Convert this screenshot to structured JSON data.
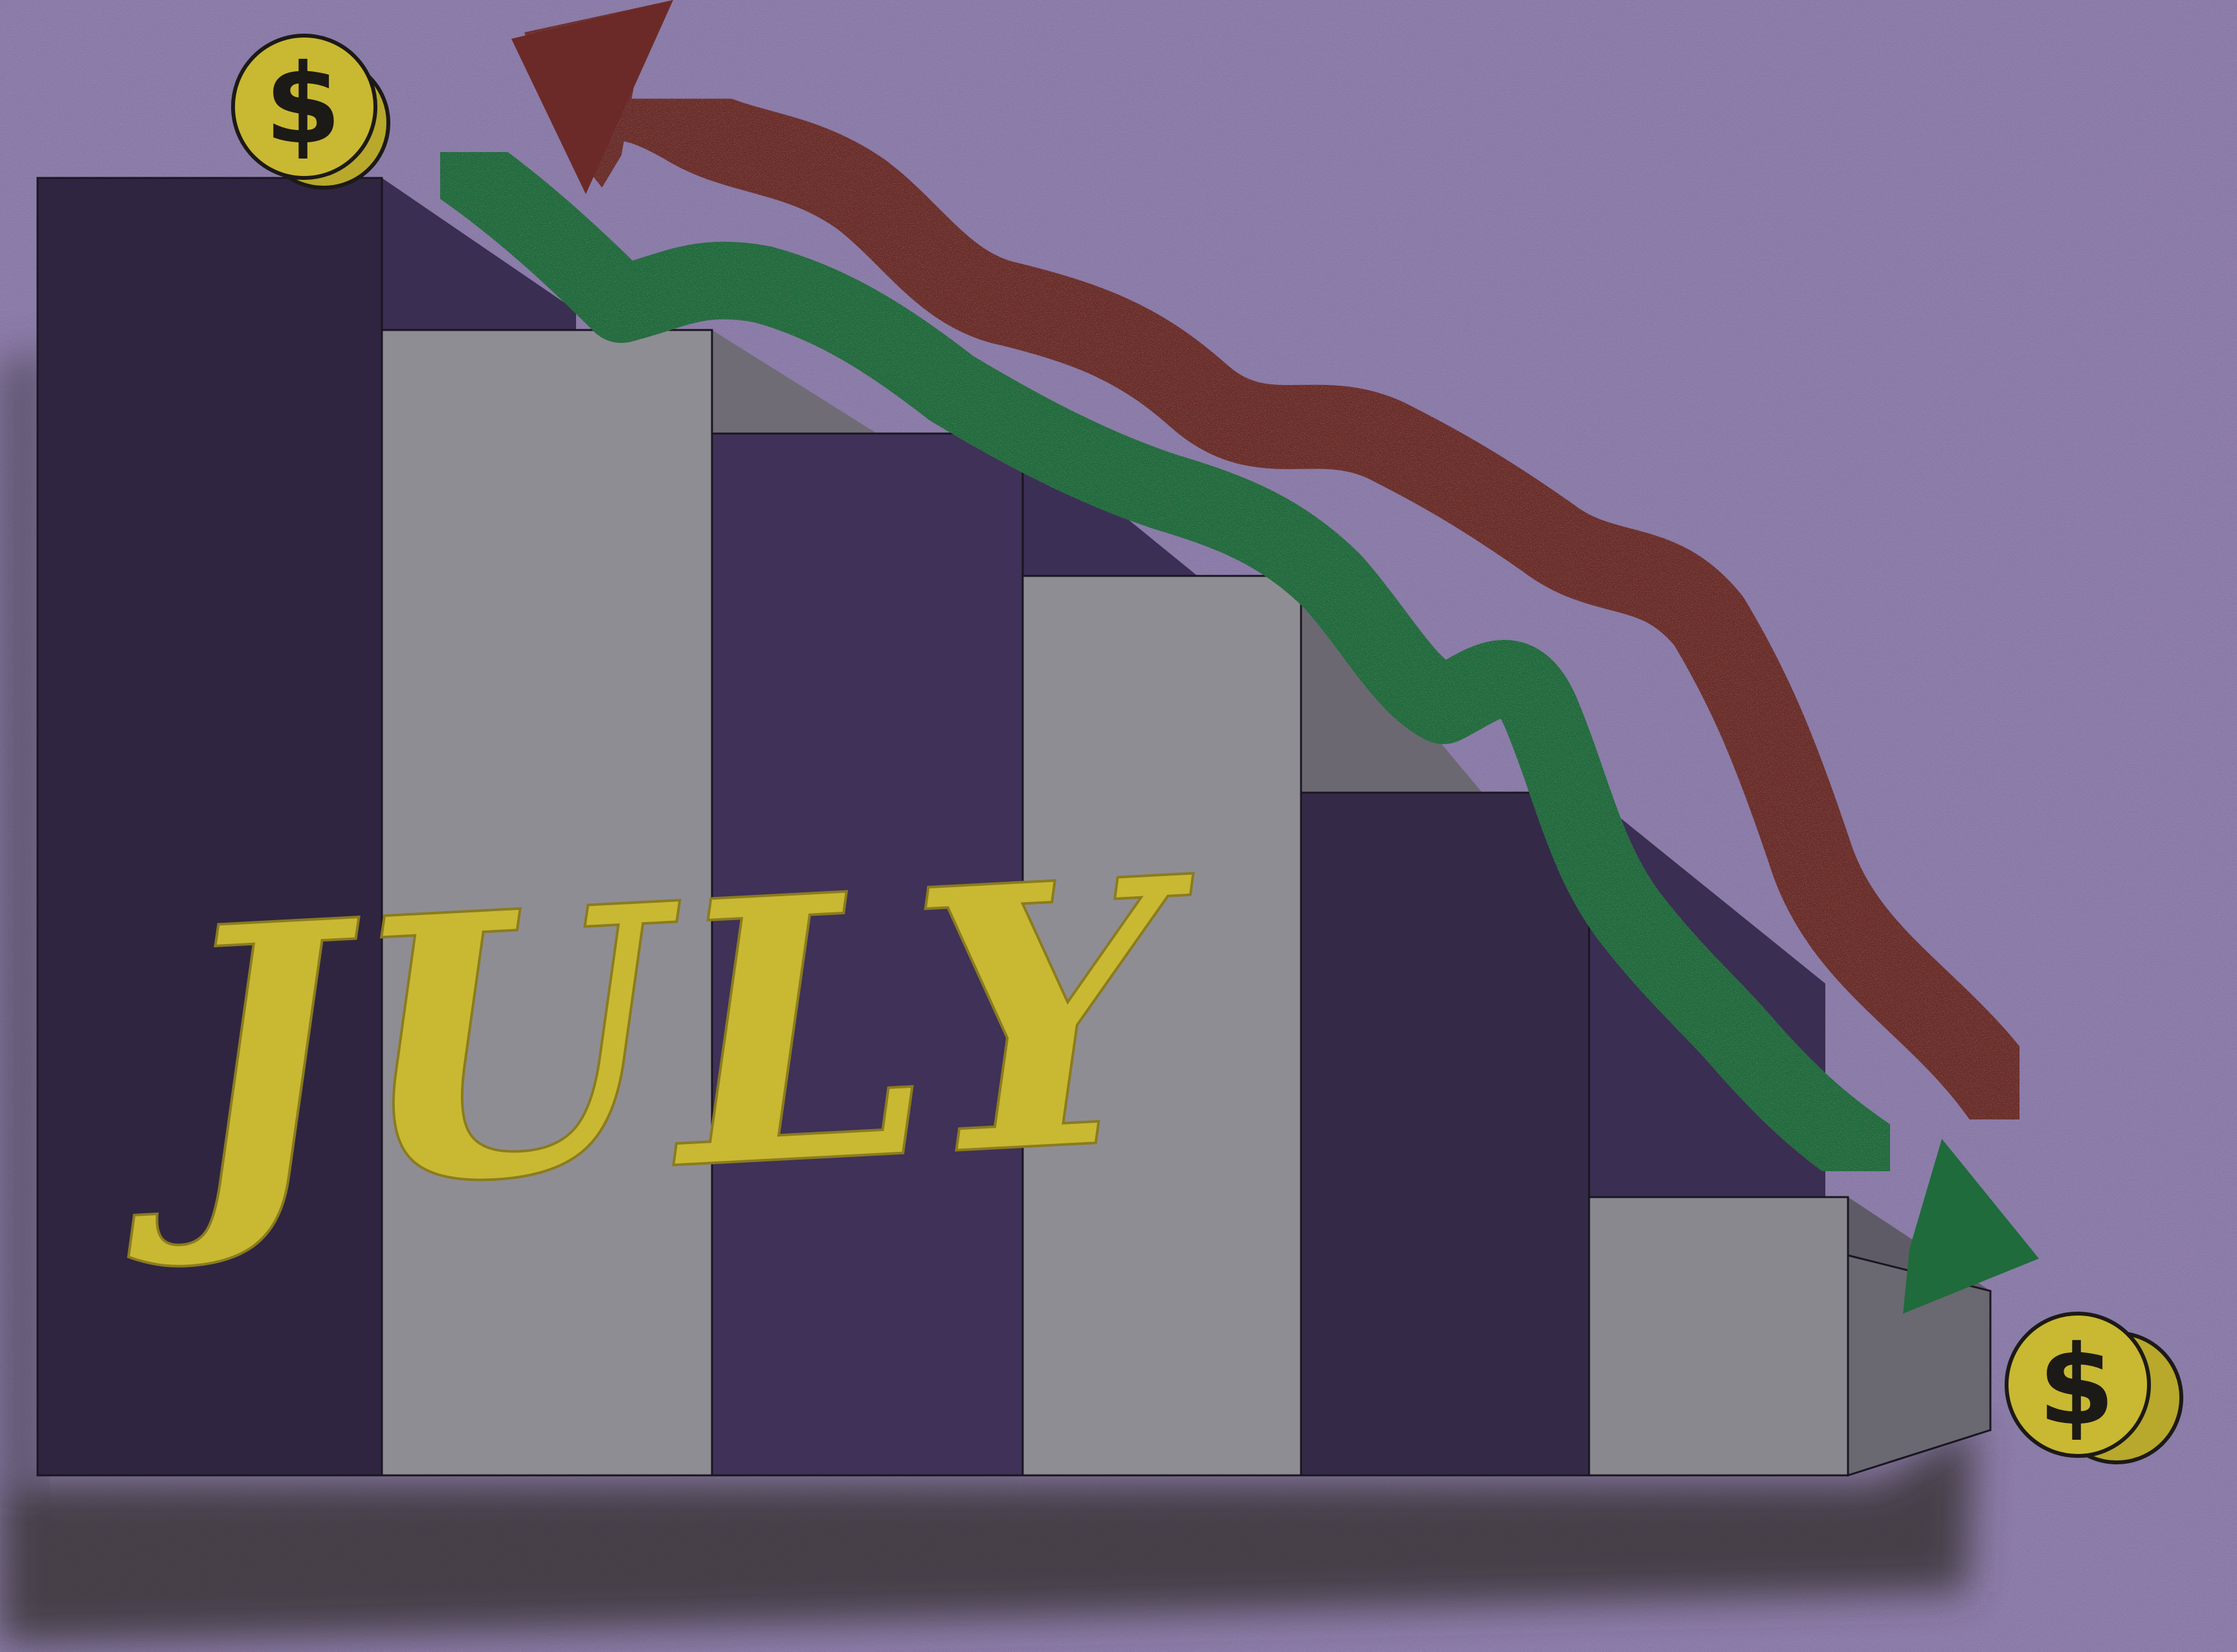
{
  "title": "JULY",
  "coins": [
    {
      "symbol": "$"
    },
    {
      "symbol": "$"
    }
  ],
  "colors": {
    "background": "#8a7aa8",
    "bar_dark": "#2f2540",
    "bar_purple": "#3f3158",
    "bar_gray": "#8f8d94",
    "shadow": "#3a3438",
    "green_arrow": "#1f6b3b",
    "red_arrow": "#6b2a28",
    "gold": "#c9b832",
    "ink": "#1c1a16"
  },
  "icons": [
    "dollar-coin-icon",
    "down-trend-arrow-icon",
    "up-turn-arrow-icon"
  ]
}
